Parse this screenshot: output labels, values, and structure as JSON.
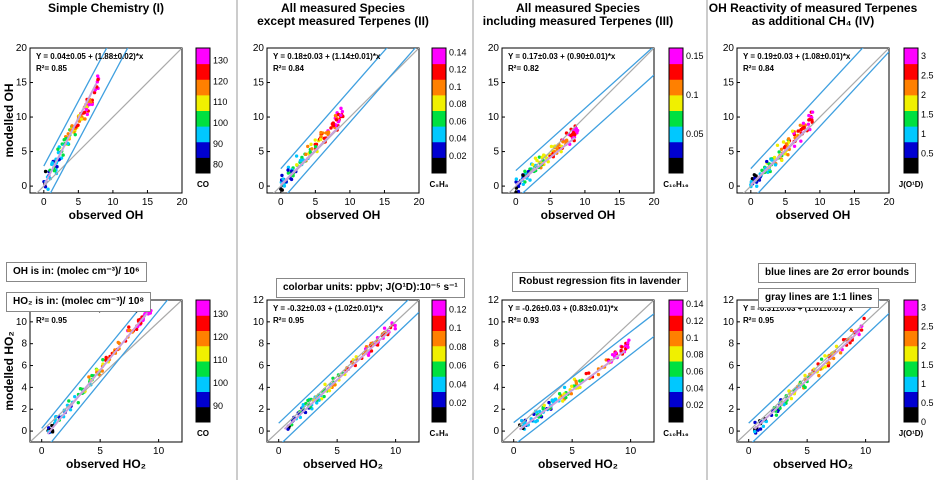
{
  "notes": {
    "oh_units": "OH is in:  (molec cm⁻³)/ 10⁶",
    "ho2_units": "HO₂ is in:  (molec cm⁻³)/ 10⁸",
    "colorbar_units": "colorbar units: ppbv; J(O¹D):10⁻⁵ s⁻¹",
    "robust_fit": "Robust regression fits in lavender",
    "blue_lines": "blue lines are 2σ error bounds",
    "gray_lines": "gray lines are 1:1 lines"
  },
  "chart_data": [
    {
      "type": "scatter",
      "title": [
        "Simple Chemistry (I)"
      ],
      "xlabel": "observed OH",
      "ylabel": "modelled OH",
      "xlim": [
        -2,
        20
      ],
      "ylim": [
        -1,
        20
      ],
      "xticks": [
        0,
        5,
        10,
        15,
        20
      ],
      "yticks": [
        0,
        5,
        10,
        15,
        20
      ],
      "equation": "Y = 0.04±0.05 + (1.88±0.02)*x",
      "r2": "R²= 0.85",
      "slope": 1.88,
      "intercept": 0.04,
      "robust_slope": 1.95,
      "colorbar": {
        "label": "CO",
        "range": [
          76,
          136
        ],
        "ticks": [
          "80",
          "90",
          "100",
          "110",
          "120",
          "130"
        ]
      },
      "cluster": {
        "x": [
          0,
          8
        ],
        "y_noise": 2.2
      }
    },
    {
      "type": "scatter",
      "title": [
        "All measured Species",
        "except measured Terpenes (II)"
      ],
      "xlabel": "observed OH",
      "ylabel": "",
      "xlim": [
        -2,
        20
      ],
      "ylim": [
        -1,
        20
      ],
      "xticks": [
        0,
        5,
        10,
        15,
        20
      ],
      "yticks": [
        0,
        5,
        10,
        15,
        20
      ],
      "equation": "Y = 0.18±0.03 + (1.14±0.01)*x",
      "r2": "R²= 0.84",
      "slope": 1.14,
      "intercept": 0.18,
      "robust_slope": 1.0,
      "colorbar": {
        "label": "C₅H₈",
        "range": [
          0,
          0.145
        ],
        "ticks": [
          "0.02",
          "0.04",
          "0.06",
          "0.08",
          "0.1",
          "0.12",
          "0.14"
        ]
      },
      "cluster": {
        "x": [
          0,
          9
        ],
        "y_noise": 1.8
      }
    },
    {
      "type": "scatter",
      "title": [
        "All measured Species",
        "including measured Terpenes (III)"
      ],
      "xlabel": "observed OH",
      "ylabel": "",
      "xlim": [
        -2,
        20
      ],
      "ylim": [
        -1,
        20
      ],
      "xticks": [
        0,
        5,
        10,
        15,
        20
      ],
      "yticks": [
        0,
        5,
        10,
        15,
        20
      ],
      "equation": "Y = 0.17±0.03 + (0.90±0.01)*x",
      "r2": "R²= 0.82",
      "slope": 0.9,
      "intercept": 0.17,
      "robust_slope": 0.8,
      "colorbar": {
        "label": "C₁₀H₁₆",
        "range": [
          0,
          0.16
        ],
        "ticks": [
          "0.05",
          "0.1",
          "0.15"
        ]
      },
      "cluster": {
        "x": [
          0,
          9
        ],
        "y_noise": 1.6
      }
    },
    {
      "type": "scatter",
      "title": [
        "OH Reactivity of measured Terpenes",
        "as additional CH₄ (IV)"
      ],
      "xlabel": "observed OH",
      "ylabel": "",
      "xlim": [
        -2,
        20
      ],
      "ylim": [
        -1,
        20
      ],
      "xticks": [
        0,
        5,
        10,
        15,
        20
      ],
      "yticks": [
        0,
        5,
        10,
        15,
        20
      ],
      "equation": "Y = 0.19±0.03 + (1.08±0.01)*x",
      "r2": "R²= 0.84",
      "slope": 1.08,
      "intercept": 0.19,
      "robust_slope": 1.0,
      "colorbar": {
        "label": "J(O¹D)",
        "range": [
          0,
          3.2
        ],
        "ticks": [
          "0.5",
          "1",
          "1.5",
          "2",
          "2.5",
          "3"
        ]
      },
      "cluster": {
        "x": [
          0,
          9
        ],
        "y_noise": 1.8
      }
    },
    {
      "type": "scatter",
      "title": [],
      "xlabel": "observed HO₂",
      "ylabel": "modelled HO₂",
      "xlim": [
        -1,
        12
      ],
      "ylim": [
        -1,
        12
      ],
      "xticks": [
        0,
        5,
        10
      ],
      "yticks": [
        0,
        2,
        4,
        6,
        8,
        10,
        12
      ],
      "equation": "Y = -0.92±0.04 + (1.31±0.01)*x",
      "r2": "R²= 0.95",
      "slope": 1.31,
      "intercept": -0.92,
      "robust_slope": 1.3,
      "colorbar": {
        "label": "CO",
        "range": [
          83,
          136
        ],
        "ticks": [
          "90",
          "100",
          "110",
          "120",
          "130"
        ]
      },
      "cluster": {
        "x": [
          0.5,
          9.5
        ],
        "y_noise": 0.9
      }
    },
    {
      "type": "scatter",
      "title": [],
      "xlabel": "observed HO₂",
      "ylabel": "",
      "xlim": [
        -1,
        12
      ],
      "ylim": [
        -1,
        12
      ],
      "xticks": [
        0,
        5,
        10
      ],
      "yticks": [
        0,
        2,
        4,
        6,
        8,
        10,
        12
      ],
      "equation": "Y = -0.32±0.03 + (1.02±0.01)*x",
      "r2": "R²= 0.95",
      "slope": 1.02,
      "intercept": -0.32,
      "robust_slope": 1.0,
      "colorbar": {
        "label": "C₅H₈",
        "range": [
          0,
          0.13
        ],
        "ticks": [
          "0.02",
          "0.04",
          "0.06",
          "0.08",
          "0.1",
          "0.12"
        ]
      },
      "cluster": {
        "x": [
          0.5,
          10
        ],
        "y_noise": 0.8
      }
    },
    {
      "type": "scatter",
      "title": [],
      "xlabel": "observed HO₂",
      "ylabel": "",
      "xlim": [
        -1,
        12
      ],
      "ylim": [
        -1,
        12
      ],
      "xticks": [
        0,
        5,
        10
      ],
      "yticks": [
        0,
        2,
        4,
        6,
        8,
        10,
        12
      ],
      "equation": "Y = -0.26±0.03 + (0.83±0.01)*x",
      "r2": "R²= 0.93",
      "slope": 0.83,
      "intercept": -0.26,
      "robust_slope": 0.8,
      "colorbar": {
        "label": "C₁₀H₁₆",
        "range": [
          0,
          0.145
        ],
        "ticks": [
          "0.02",
          "0.04",
          "0.06",
          "0.08",
          "0.1",
          "0.12",
          "0.14"
        ]
      },
      "cluster": {
        "x": [
          0.5,
          10
        ],
        "y_noise": 0.8
      }
    },
    {
      "type": "scatter",
      "title": [],
      "xlabel": "observed HO₂",
      "ylabel": "",
      "xlim": [
        -1,
        12
      ],
      "ylim": [
        -1,
        12
      ],
      "xticks": [
        0,
        5,
        10
      ],
      "yticks": [
        0,
        2,
        4,
        6,
        8,
        10,
        12
      ],
      "equation": "Y = -0.31±0.03 + (1.01±0.01)*x",
      "r2": "R²= 0.95",
      "slope": 1.01,
      "intercept": -0.31,
      "robust_slope": 1.0,
      "colorbar": {
        "label": "J(O¹D)",
        "range": [
          0,
          3.2
        ],
        "ticks": [
          "0",
          "0.5",
          "1",
          "1.5",
          "2",
          "2.5",
          "3"
        ]
      },
      "cluster": {
        "x": [
          0.5,
          10
        ],
        "y_noise": 0.8
      }
    }
  ],
  "colors": {
    "error_bounds": "#3fa0e0",
    "one_to_one": "#aaaaaa",
    "robust_fit": "#c9a0dc",
    "colormap": [
      "#000000",
      "#0000d0",
      "#00c8ff",
      "#00e040",
      "#f0f000",
      "#ff8000",
      "#ff0000",
      "#ff00ff"
    ]
  }
}
